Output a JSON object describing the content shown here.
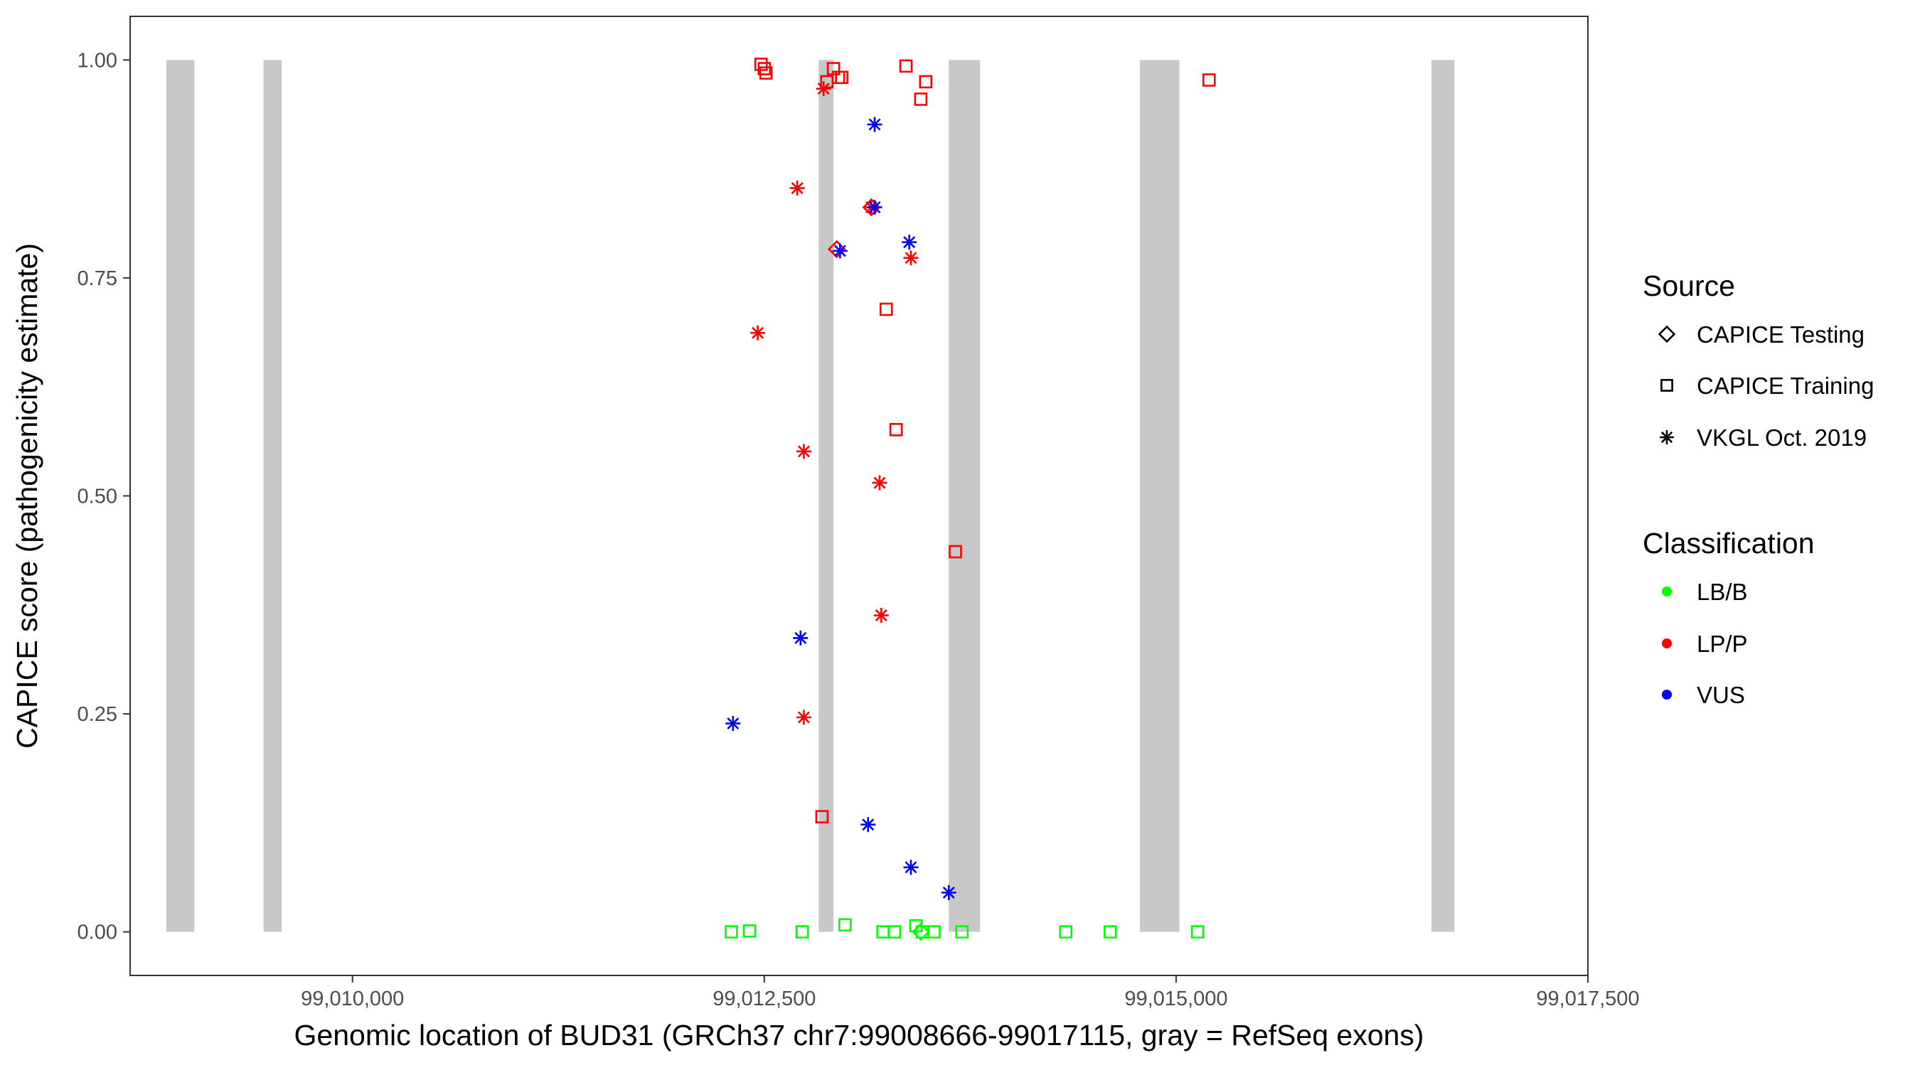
{
  "chart_data": {
    "type": "scatter",
    "xlabel": "Genomic location of BUD31 (GRCh37 chr7:99008666-99017115, gray = RefSeq exons)",
    "ylabel": "CAPICE score (pathogenicity estimate)",
    "xlim": [
      99008650,
      99017500
    ],
    "ylim": [
      -0.05,
      1.05
    ],
    "x_ticks": [
      99010000,
      99012500,
      99015000,
      99017500
    ],
    "x_tick_labels": [
      "99,010,000",
      "99,012,500",
      "99,015,000",
      "99,017,500"
    ],
    "y_ticks": [
      0,
      0.25,
      0.5,
      0.75,
      1
    ],
    "y_tick_labels": [
      "0.00",
      "0.25",
      "0.50",
      "0.75",
      "1.00"
    ],
    "grid": false,
    "exons": [
      {
        "start": 99008870,
        "end": 99009040
      },
      {
        "start": 99009460,
        "end": 99009570
      },
      {
        "start": 99012830,
        "end": 99012920
      },
      {
        "start": 99013620,
        "end": 99013810
      },
      {
        "start": 99014780,
        "end": 99015020
      },
      {
        "start": 99016550,
        "end": 99016690
      }
    ],
    "legend": {
      "placement": "right",
      "source_title": "Source",
      "source_entries": [
        {
          "label": "CAPICE Testing",
          "shape": "diamond"
        },
        {
          "label": "CAPICE Training",
          "shape": "square"
        },
        {
          "label": "VKGL Oct. 2019",
          "shape": "asterisk"
        }
      ],
      "classification_title": "Classification",
      "classification_entries": [
        {
          "label": "LB/B",
          "color": "#00ff00"
        },
        {
          "label": "LP/P",
          "color": "#ff0000"
        },
        {
          "label": "VUS",
          "color": "#0000ff"
        }
      ]
    },
    "series": [
      {
        "name": "CAPICE Training",
        "shape": "square",
        "points": [
          {
            "x": 99012480,
            "y": 0.995,
            "class": "LP/P"
          },
          {
            "x": 99012500,
            "y": 0.99,
            "class": "LP/P"
          },
          {
            "x": 99012510,
            "y": 0.985,
            "class": "LP/P"
          },
          {
            "x": 99012880,
            "y": 0.975,
            "class": "LP/P"
          },
          {
            "x": 99012920,
            "y": 0.99,
            "class": "LP/P"
          },
          {
            "x": 99012950,
            "y": 0.98,
            "class": "LP/P"
          },
          {
            "x": 99012970,
            "y": 0.98,
            "class": "LP/P"
          },
          {
            "x": 99013360,
            "y": 0.993,
            "class": "LP/P"
          },
          {
            "x": 99013450,
            "y": 0.955,
            "class": "LP/P"
          },
          {
            "x": 99013480,
            "y": 0.975,
            "class": "LP/P"
          },
          {
            "x": 99015200,
            "y": 0.977,
            "class": "LP/P"
          },
          {
            "x": 99013240,
            "y": 0.714,
            "class": "LP/P"
          },
          {
            "x": 99013300,
            "y": 0.576,
            "class": "LP/P"
          },
          {
            "x": 99013660,
            "y": 0.436,
            "class": "LP/P"
          },
          {
            "x": 99012850,
            "y": 0.132,
            "class": "LP/P"
          },
          {
            "x": 99012300,
            "y": 0.0,
            "class": "LB/B"
          },
          {
            "x": 99012410,
            "y": 0.001,
            "class": "LB/B"
          },
          {
            "x": 99012730,
            "y": 0.0,
            "class": "LB/B"
          },
          {
            "x": 99012990,
            "y": 0.008,
            "class": "LB/B"
          },
          {
            "x": 99013220,
            "y": 0.0,
            "class": "LB/B"
          },
          {
            "x": 99013290,
            "y": 0.0,
            "class": "LB/B"
          },
          {
            "x": 99013420,
            "y": 0.007,
            "class": "LB/B"
          },
          {
            "x": 99013460,
            "y": 0.0,
            "class": "LB/B"
          },
          {
            "x": 99013530,
            "y": 0.0,
            "class": "LB/B"
          },
          {
            "x": 99013700,
            "y": 0.0,
            "class": "LB/B"
          },
          {
            "x": 99014330,
            "y": 0.0,
            "class": "LB/B"
          },
          {
            "x": 99014600,
            "y": 0.0,
            "class": "LB/B"
          },
          {
            "x": 99015130,
            "y": 0.0,
            "class": "LB/B"
          }
        ]
      },
      {
        "name": "CAPICE Testing",
        "shape": "diamond",
        "points": [
          {
            "x": 99012940,
            "y": 0.783,
            "class": "LP/P"
          },
          {
            "x": 99013150,
            "y": 0.831,
            "class": "LP/P"
          },
          {
            "x": 99013450,
            "y": 0.0,
            "class": "LB/B"
          }
        ]
      },
      {
        "name": "VKGL Oct. 2019",
        "shape": "asterisk",
        "points": [
          {
            "x": 99012860,
            "y": 0.967,
            "class": "LP/P"
          },
          {
            "x": 99012700,
            "y": 0.853,
            "class": "LP/P"
          },
          {
            "x": 99013150,
            "y": 0.831,
            "class": "LP/P"
          },
          {
            "x": 99013390,
            "y": 0.773,
            "class": "LP/P"
          },
          {
            "x": 99012460,
            "y": 0.687,
            "class": "LP/P"
          },
          {
            "x": 99012740,
            "y": 0.551,
            "class": "LP/P"
          },
          {
            "x": 99013200,
            "y": 0.515,
            "class": "LP/P"
          },
          {
            "x": 99013210,
            "y": 0.363,
            "class": "LP/P"
          },
          {
            "x": 99012740,
            "y": 0.246,
            "class": "LP/P"
          },
          {
            "x": 99013170,
            "y": 0.926,
            "class": "VUS"
          },
          {
            "x": 99013170,
            "y": 0.831,
            "class": "VUS"
          },
          {
            "x": 99013380,
            "y": 0.791,
            "class": "VUS"
          },
          {
            "x": 99012960,
            "y": 0.781,
            "class": "VUS"
          },
          {
            "x": 99012720,
            "y": 0.337,
            "class": "VUS"
          },
          {
            "x": 99012310,
            "y": 0.239,
            "class": "VUS"
          },
          {
            "x": 99013130,
            "y": 0.123,
            "class": "VUS"
          },
          {
            "x": 99013390,
            "y": 0.074,
            "class": "VUS"
          },
          {
            "x": 99013620,
            "y": 0.045,
            "class": "VUS"
          }
        ]
      }
    ]
  }
}
